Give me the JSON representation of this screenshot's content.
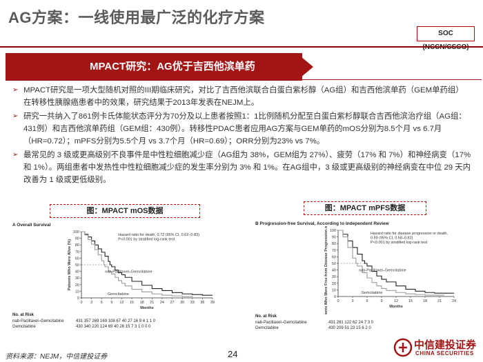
{
  "header": {
    "title": "AG方案：一线使用最广泛的化疗方案",
    "badge": "SOC (NCCN/CSCO)"
  },
  "banner": {
    "text": "MPACT研究：AG优于吉西他滨单药"
  },
  "bullets": [
    "MPACT研究是一项大型随机对照的III期临床研究，对比了吉西他滨联合白蛋白紫杉醇（AG组）和吉西他滨单药（GEM单药组）在转移性胰腺癌患者中的效果，研究结果于2013年发表在NEJM上。",
    "研究一共纳入了861例卡氏体能状态评分为70分及以上患者按照1：1比例随机分配至白蛋白紫杉醇联合吉西他滨治疗组（AG组：431例）和吉西他滨单药组（GEM组：430例）。转移性PDAC患者应用AG方案与GEM单药的mOS分别为8.5个月 vs 6.7月（HR=0.72）；mPFS分别为5.5个月 vs 3.7个月（HR=0.69）；ORR分别为23% vs 7%。",
    "最常见的 3 级或更高级别不良事件是中性粒细胞减少症（AG组为 38%，GEM组为 27%）、疲劳（17% 和 7%）和神经病变（17% 和 1%）。两组患者中发热性中性粒细胞减少症的发生率分别为 3% 和 1%。在AG组中，3 级或更高级别的神经病变在中位 29 天内改善为 1 级或更低级别。"
  ],
  "figures": [
    {
      "caption": "图：MPACT mOS数据",
      "panel_title": "A  Overall Survival",
      "ylabel": "Patients Who Were Alive (%)",
      "xlabel": "Months",
      "hazard_text": [
        "Hazard ratio for death, 0.72 (95% CI, 0.62–0.83)",
        "P<0.001 by stratified log-rank test"
      ],
      "series_labels": [
        "nab-Paclitaxel–Gemcitabine",
        "Gemcitabine"
      ],
      "risk_title": "No. at Risk",
      "risk_rows": [
        {
          "label": "nab-Paclitaxel–Gemcitabine",
          "values": "431  357  269  169  108   67   40   27   16    9     4     1     1     0"
        },
        {
          "label": "Gemcitabine",
          "values": "430  340  220  124   69   40   26   15    7     3     1     0     0     0"
        }
      ]
    },
    {
      "caption": "图：MPACT mPFS数据",
      "panel_title": "B  Progression-free Survival, According to Independent Review",
      "ylabel": "Patients Who Were Free from Disease Progression or Death (%)",
      "xlabel": "Months",
      "hazard_text": [
        "Hazard ratio for disease progression or death,",
        "0.69 (95% CI, 0.58–0.82)",
        "P<0.001 by stratified log-rank test"
      ],
      "series_labels": [
        "nab-Paclitaxel–Gemcitabine",
        "Gemcitabine"
      ],
      "risk_title": "No. at Risk",
      "risk_rows": [
        {
          "label": "nab-Paclitaxel–Gemcitabine",
          "values": "431    281    122    62    24    7      3      0"
        },
        {
          "label": "Gemcitabine",
          "values": "430    209    51     23    15    6      2      0"
        }
      ]
    }
  ],
  "chart_data": [
    {
      "type": "line",
      "title": "A  Overall Survival",
      "xlabel": "Months",
      "ylabel": "Patients Who Were Alive (%)",
      "xlim": [
        0,
        39
      ],
      "ylim": [
        0,
        100
      ],
      "x_ticks": [
        0,
        3,
        6,
        9,
        12,
        15,
        18,
        21,
        24,
        27,
        30,
        33,
        36,
        39
      ],
      "y_ticks": [
        0,
        10,
        20,
        30,
        40,
        50,
        60,
        70,
        80,
        90,
        100
      ],
      "series": [
        {
          "name": "nab-Paclitaxel–Gemcitabine",
          "x": [
            0,
            1,
            2,
            3,
            4,
            5,
            6,
            7,
            8,
            8.5,
            9,
            10,
            11,
            12,
            13,
            15,
            18,
            21,
            24,
            27,
            30,
            33,
            36,
            39
          ],
          "y": [
            100,
            96,
            92,
            86,
            80,
            74,
            69,
            63,
            55,
            50,
            47,
            42,
            38,
            35,
            31,
            25,
            19,
            14,
            11,
            8,
            6,
            5,
            4,
            4
          ]
        },
        {
          "name": "Gemcitabine",
          "x": [
            0,
            1,
            2,
            3,
            4,
            5,
            6,
            6.7,
            7,
            8,
            9,
            10,
            11,
            12,
            13,
            15,
            18,
            21,
            24,
            27,
            30,
            33
          ],
          "y": [
            100,
            95,
            88,
            81,
            73,
            65,
            56,
            50,
            47,
            40,
            36,
            31,
            26,
            22,
            18,
            13,
            9,
            6,
            4,
            3,
            2,
            1
          ]
        }
      ]
    },
    {
      "type": "line",
      "title": "B  Progression-free Survival, According to Independent Review",
      "xlabel": "Months",
      "ylabel": "Patients Who Were Free from Disease Progression or Death (%)",
      "xlim": [
        0,
        24
      ],
      "ylim": [
        0,
        100
      ],
      "x_ticks": [
        0,
        3,
        6,
        9,
        12,
        15,
        18,
        21,
        24
      ],
      "y_ticks": [
        0,
        10,
        20,
        30,
        40,
        50,
        60,
        70,
        80,
        90,
        100
      ],
      "series": [
        {
          "name": "nab-Paclitaxel–Gemcitabine",
          "x": [
            0,
            1,
            2,
            3,
            4,
            5,
            5.5,
            6,
            7,
            8,
            9,
            10,
            12,
            14,
            16,
            18,
            20,
            22,
            24
          ],
          "y": [
            100,
            94,
            84,
            74,
            64,
            54,
            50,
            46,
            38,
            31,
            26,
            22,
            16,
            11,
            8,
            6,
            5,
            5,
            5
          ]
        },
        {
          "name": "Gemcitabine",
          "x": [
            0,
            1,
            2,
            3,
            3.7,
            4,
            5,
            6,
            7,
            8,
            9,
            10,
            12,
            14,
            16,
            18,
            20,
            22
          ],
          "y": [
            100,
            90,
            74,
            58,
            50,
            46,
            36,
            28,
            21,
            16,
            12,
            9,
            6,
            4,
            3,
            2,
            2,
            2
          ]
        }
      ]
    }
  ],
  "footer": {
    "source": "资料来源：NEJM，中信建投证券",
    "page": "24",
    "logo_cn": "中信建投证券",
    "logo_en": "CHINA SECURITIES"
  },
  "colors": {
    "brand_red": "#a31414",
    "ag_curve": "#222222",
    "gem_curve": "#9a9a9a"
  }
}
